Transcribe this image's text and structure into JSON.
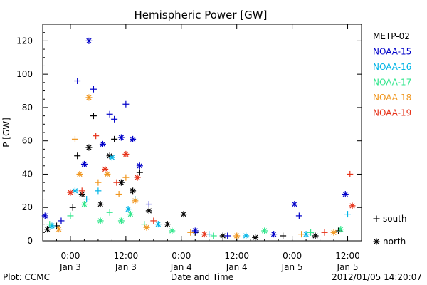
{
  "figure": {
    "title": "Hemispheric Power [GW]",
    "footer_left": "Plot: CCMC",
    "footer_center": "Date and Time",
    "footer_right": "2012/01/05 14:20:07",
    "marker_key": [
      {
        "symbol": "+",
        "label": "south"
      },
      {
        "symbol": "*",
        "label": "north"
      }
    ]
  },
  "chart_data": {
    "type": "scatter",
    "title": "Hemispheric Power [GW]",
    "ylabel": "P [GW]",
    "xlabel": "Date and Time",
    "ylim": [
      0,
      130
    ],
    "yticks": [
      0,
      20,
      40,
      60,
      80,
      100,
      120
    ],
    "xlim": [
      "2012-01-02 18:00",
      "2012-01-05 15:00"
    ],
    "xticks": [
      {
        "x": "2012-01-03 00:00",
        "label": [
          "0:00",
          "Jan 3"
        ]
      },
      {
        "x": "2012-01-03 12:00",
        "label": [
          "12:00",
          "Jan 3"
        ]
      },
      {
        "x": "2012-01-04 00:00",
        "label": [
          "0:00",
          "Jan 4"
        ]
      },
      {
        "x": "2012-01-04 12:00",
        "label": [
          "12:00",
          "Jan 4"
        ]
      },
      {
        "x": "2012-01-05 00:00",
        "label": [
          "0:00",
          "Jan 5"
        ]
      },
      {
        "x": "2012-01-05 12:00",
        "label": [
          "12:00",
          "Jan 5"
        ]
      }
    ],
    "grid": false,
    "legend_placement": "right",
    "series": [
      {
        "name": "METP-02",
        "color": "#000000",
        "points": [
          {
            "x": "2012-01-02 19:00",
            "y": 7,
            "hemisphere": "north"
          },
          {
            "x": "2012-01-02 21:00",
            "y": 9,
            "hemisphere": "south"
          },
          {
            "x": "2012-01-03 00:30",
            "y": 20,
            "hemisphere": "south"
          },
          {
            "x": "2012-01-03 01:30",
            "y": 51,
            "hemisphere": "south"
          },
          {
            "x": "2012-01-03 02:30",
            "y": 28,
            "hemisphere": "north"
          },
          {
            "x": "2012-01-03 04:00",
            "y": 56,
            "hemisphere": "north"
          },
          {
            "x": "2012-01-03 05:00",
            "y": 75,
            "hemisphere": "south"
          },
          {
            "x": "2012-01-03 06:30",
            "y": 22,
            "hemisphere": "north"
          },
          {
            "x": "2012-01-03 08:30",
            "y": 51,
            "hemisphere": "north"
          },
          {
            "x": "2012-01-03 09:30",
            "y": 61,
            "hemisphere": "south"
          },
          {
            "x": "2012-01-03 11:00",
            "y": 35,
            "hemisphere": "north"
          },
          {
            "x": "2012-01-03 13:30",
            "y": 30,
            "hemisphere": "north"
          },
          {
            "x": "2012-01-03 15:00",
            "y": 41,
            "hemisphere": "south"
          },
          {
            "x": "2012-01-03 17:00",
            "y": 18,
            "hemisphere": "north"
          },
          {
            "x": "2012-01-03 21:00",
            "y": 10,
            "hemisphere": "north"
          },
          {
            "x": "2012-01-04 00:30",
            "y": 16,
            "hemisphere": "north"
          },
          {
            "x": "2012-01-04 03:00",
            "y": 5,
            "hemisphere": "south"
          },
          {
            "x": "2012-01-04 09:00",
            "y": 3,
            "hemisphere": "north"
          },
          {
            "x": "2012-01-04 16:00",
            "y": 2,
            "hemisphere": "north"
          },
          {
            "x": "2012-01-04 22:00",
            "y": 3,
            "hemisphere": "south"
          },
          {
            "x": "2012-01-05 05:00",
            "y": 3,
            "hemisphere": "north"
          },
          {
            "x": "2012-01-05 10:00",
            "y": 6,
            "hemisphere": "south"
          }
        ]
      },
      {
        "name": "NOAA-15",
        "color": "#0000c8",
        "points": [
          {
            "x": "2012-01-02 18:30",
            "y": 15,
            "hemisphere": "north"
          },
          {
            "x": "2012-01-02 22:00",
            "y": 12,
            "hemisphere": "south"
          },
          {
            "x": "2012-01-03 01:30",
            "y": 96,
            "hemisphere": "south"
          },
          {
            "x": "2012-01-03 03:00",
            "y": 46,
            "hemisphere": "north"
          },
          {
            "x": "2012-01-03 04:00",
            "y": 120,
            "hemisphere": "north"
          },
          {
            "x": "2012-01-03 05:00",
            "y": 91,
            "hemisphere": "south"
          },
          {
            "x": "2012-01-03 07:00",
            "y": 58,
            "hemisphere": "north"
          },
          {
            "x": "2012-01-03 08:30",
            "y": 76,
            "hemisphere": "south"
          },
          {
            "x": "2012-01-03 09:30",
            "y": 73,
            "hemisphere": "south"
          },
          {
            "x": "2012-01-03 11:00",
            "y": 62,
            "hemisphere": "north"
          },
          {
            "x": "2012-01-03 12:00",
            "y": 82,
            "hemisphere": "south"
          },
          {
            "x": "2012-01-03 13:30",
            "y": 61,
            "hemisphere": "north"
          },
          {
            "x": "2012-01-03 15:00",
            "y": 45,
            "hemisphere": "north"
          },
          {
            "x": "2012-01-03 17:00",
            "y": 22,
            "hemisphere": "south"
          },
          {
            "x": "2012-01-04 03:00",
            "y": 6,
            "hemisphere": "north"
          },
          {
            "x": "2012-01-04 10:00",
            "y": 3,
            "hemisphere": "south"
          },
          {
            "x": "2012-01-04 20:00",
            "y": 4,
            "hemisphere": "north"
          },
          {
            "x": "2012-01-05 00:30",
            "y": 22,
            "hemisphere": "north"
          },
          {
            "x": "2012-01-05 01:30",
            "y": 15,
            "hemisphere": "south"
          },
          {
            "x": "2012-01-05 11:30",
            "y": 28,
            "hemisphere": "north"
          }
        ]
      },
      {
        "name": "NOAA-16",
        "color": "#00b4e6",
        "points": [
          {
            "x": "2012-01-02 20:00",
            "y": 9,
            "hemisphere": "north"
          },
          {
            "x": "2012-01-03 01:00",
            "y": 30,
            "hemisphere": "north"
          },
          {
            "x": "2012-01-03 03:30",
            "y": 25,
            "hemisphere": "south"
          },
          {
            "x": "2012-01-03 06:00",
            "y": 30,
            "hemisphere": "south"
          },
          {
            "x": "2012-01-03 09:00",
            "y": 50,
            "hemisphere": "north"
          },
          {
            "x": "2012-01-03 12:30",
            "y": 19,
            "hemisphere": "north"
          },
          {
            "x": "2012-01-03 14:00",
            "y": 25,
            "hemisphere": "south"
          },
          {
            "x": "2012-01-03 19:00",
            "y": 10,
            "hemisphere": "north"
          },
          {
            "x": "2012-01-04 06:00",
            "y": 4,
            "hemisphere": "south"
          },
          {
            "x": "2012-01-04 14:00",
            "y": 3,
            "hemisphere": "north"
          },
          {
            "x": "2012-01-05 03:00",
            "y": 4,
            "hemisphere": "north"
          },
          {
            "x": "2012-01-05 12:00",
            "y": 16,
            "hemisphere": "south"
          }
        ]
      },
      {
        "name": "NOAA-17",
        "color": "#32e68c",
        "points": [
          {
            "x": "2012-01-02 19:30",
            "y": 10,
            "hemisphere": "south"
          },
          {
            "x": "2012-01-03 00:00",
            "y": 15,
            "hemisphere": "south"
          },
          {
            "x": "2012-01-03 03:00",
            "y": 22,
            "hemisphere": "north"
          },
          {
            "x": "2012-01-03 06:30",
            "y": 12,
            "hemisphere": "north"
          },
          {
            "x": "2012-01-03 08:30",
            "y": 17,
            "hemisphere": "south"
          },
          {
            "x": "2012-01-03 11:00",
            "y": 12,
            "hemisphere": "north"
          },
          {
            "x": "2012-01-03 13:00",
            "y": 16,
            "hemisphere": "north"
          },
          {
            "x": "2012-01-03 16:00",
            "y": 10,
            "hemisphere": "south"
          },
          {
            "x": "2012-01-03 22:00",
            "y": 6,
            "hemisphere": "north"
          },
          {
            "x": "2012-01-04 07:00",
            "y": 3,
            "hemisphere": "south"
          },
          {
            "x": "2012-01-04 18:00",
            "y": 6,
            "hemisphere": "north"
          },
          {
            "x": "2012-01-05 04:00",
            "y": 5,
            "hemisphere": "south"
          },
          {
            "x": "2012-01-05 10:30",
            "y": 7,
            "hemisphere": "north"
          }
        ]
      },
      {
        "name": "NOAA-18",
        "color": "#f0961e",
        "points": [
          {
            "x": "2012-01-02 21:30",
            "y": 7,
            "hemisphere": "north"
          },
          {
            "x": "2012-01-03 01:00",
            "y": 61,
            "hemisphere": "south"
          },
          {
            "x": "2012-01-03 02:00",
            "y": 40,
            "hemisphere": "north"
          },
          {
            "x": "2012-01-03 04:00",
            "y": 86,
            "hemisphere": "north"
          },
          {
            "x": "2012-01-03 06:00",
            "y": 35,
            "hemisphere": "south"
          },
          {
            "x": "2012-01-03 08:00",
            "y": 40,
            "hemisphere": "north"
          },
          {
            "x": "2012-01-03 10:30",
            "y": 28,
            "hemisphere": "south"
          },
          {
            "x": "2012-01-03 12:00",
            "y": 38,
            "hemisphere": "south"
          },
          {
            "x": "2012-01-03 14:00",
            "y": 24,
            "hemisphere": "north"
          },
          {
            "x": "2012-01-03 16:30",
            "y": 8,
            "hemisphere": "north"
          },
          {
            "x": "2012-01-04 02:00",
            "y": 5,
            "hemisphere": "south"
          },
          {
            "x": "2012-01-04 12:00",
            "y": 3,
            "hemisphere": "north"
          },
          {
            "x": "2012-01-05 02:00",
            "y": 4,
            "hemisphere": "south"
          },
          {
            "x": "2012-01-05 09:00",
            "y": 5,
            "hemisphere": "north"
          }
        ]
      },
      {
        "name": "NOAA-19",
        "color": "#e63219",
        "points": [
          {
            "x": "2012-01-03 00:00",
            "y": 29,
            "hemisphere": "north"
          },
          {
            "x": "2012-01-03 02:30",
            "y": 30,
            "hemisphere": "south"
          },
          {
            "x": "2012-01-03 05:30",
            "y": 63,
            "hemisphere": "south"
          },
          {
            "x": "2012-01-03 07:30",
            "y": 43,
            "hemisphere": "north"
          },
          {
            "x": "2012-01-03 10:00",
            "y": 35,
            "hemisphere": "south"
          },
          {
            "x": "2012-01-03 12:00",
            "y": 52,
            "hemisphere": "north"
          },
          {
            "x": "2012-01-03 14:30",
            "y": 38,
            "hemisphere": "north"
          },
          {
            "x": "2012-01-03 18:00",
            "y": 12,
            "hemisphere": "south"
          },
          {
            "x": "2012-01-04 05:00",
            "y": 4,
            "hemisphere": "north"
          },
          {
            "x": "2012-01-05 07:00",
            "y": 5,
            "hemisphere": "south"
          },
          {
            "x": "2012-01-05 12:30",
            "y": 40,
            "hemisphere": "south"
          },
          {
            "x": "2012-01-05 13:00",
            "y": 21,
            "hemisphere": "north"
          }
        ]
      }
    ]
  }
}
